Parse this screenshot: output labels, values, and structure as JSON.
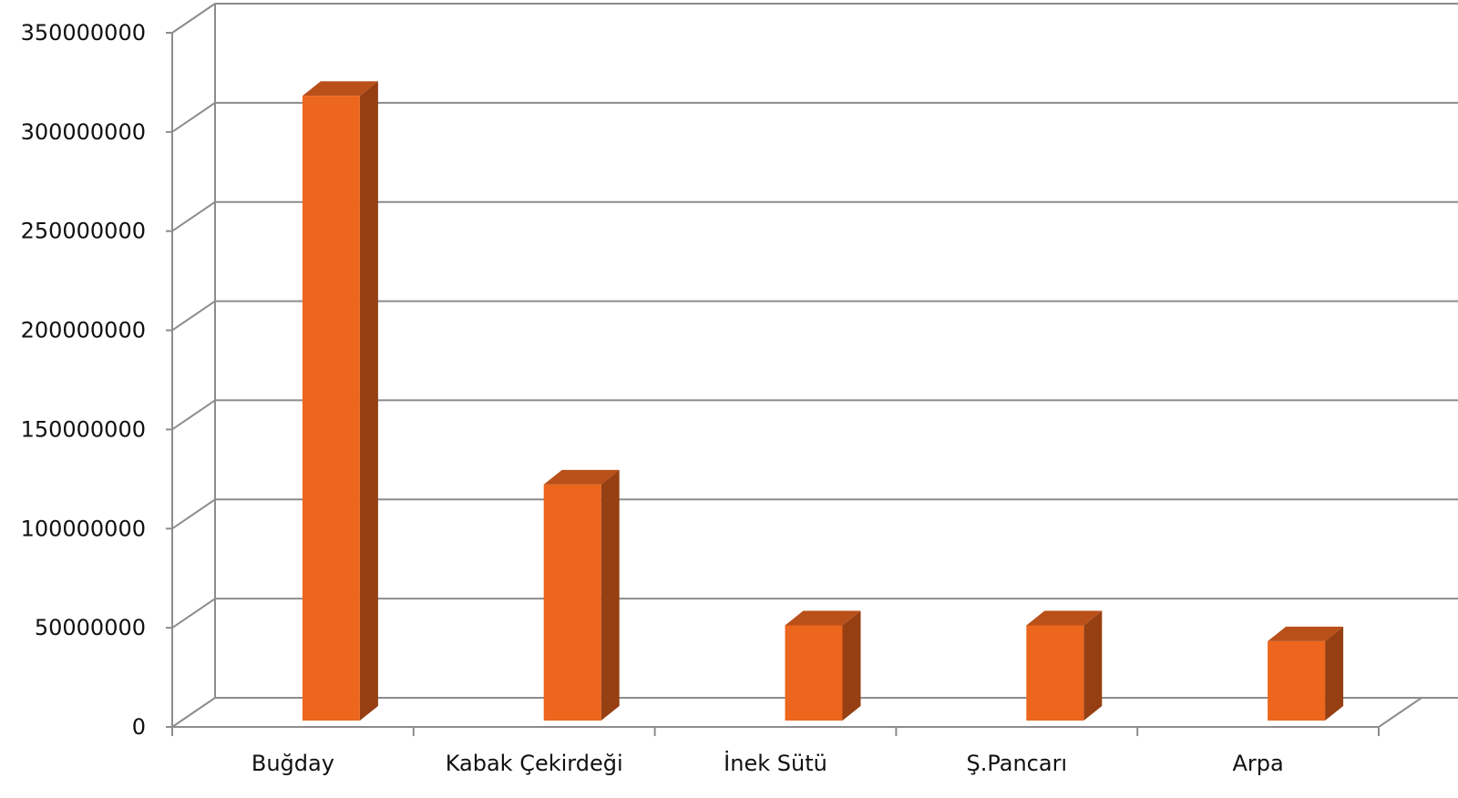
{
  "chart_data": {
    "type": "bar",
    "title": "",
    "xlabel": "",
    "ylabel": "",
    "categories": [
      "Buğday",
      "Kabak Çekirdeği",
      "İnek Sütü",
      "Ş.Pancarı",
      "Arpa"
    ],
    "values": [
      315000000,
      119000000,
      48000000,
      48000000,
      40000000
    ],
    "ylim": [
      0,
      350000000
    ],
    "yticks": [
      "0",
      "50000000",
      "100000000",
      "150000000",
      "200000000",
      "250000000",
      "300000000",
      "350000000"
    ],
    "grid": true,
    "legend": "none",
    "style": "3d-column",
    "colors": {
      "bar_front": "#EC661D",
      "bar_side": "#963F12",
      "bar_top": "#B9501A",
      "grid": "#8C8C8C",
      "axis": "#8C8C8C",
      "text": "#111111"
    }
  }
}
